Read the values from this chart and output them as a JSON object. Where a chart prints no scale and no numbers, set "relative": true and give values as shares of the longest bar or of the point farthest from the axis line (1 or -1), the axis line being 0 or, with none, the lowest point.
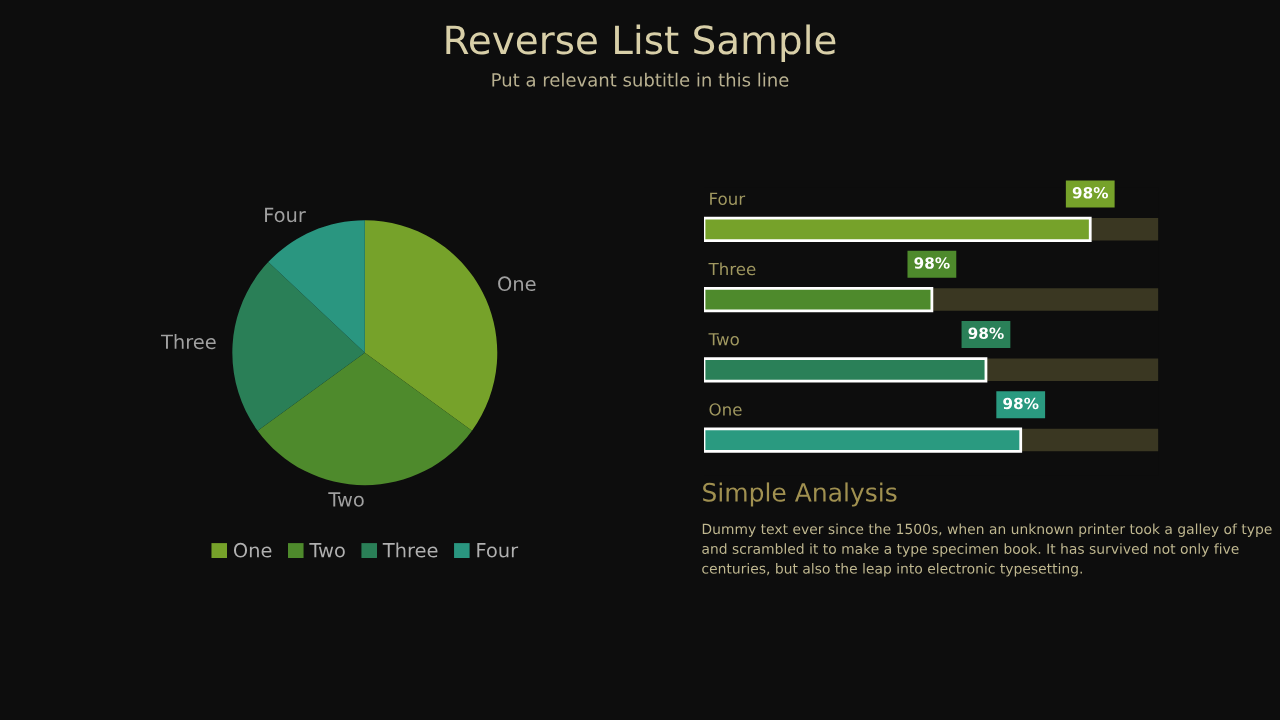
{
  "chart_data": [
    {
      "type": "pie",
      "title": "Reverse List Sample",
      "subtitle": "Put a relevant subtitle in this line",
      "categories": [
        "One",
        "Two",
        "Three",
        "Four"
      ],
      "values": [
        35,
        30,
        22,
        13
      ],
      "colors": [
        "#76a22a",
        "#4e8a2c",
        "#2a7f57",
        "#2a9680"
      ],
      "legend": "bottom"
    },
    {
      "type": "bar",
      "orientation": "horizontal",
      "relative": true,
      "categories": [
        "Four",
        "Three",
        "Two",
        "One"
      ],
      "values": [
        1,
        0.59,
        0.73,
        0.82
      ],
      "colors": [
        "#76a22a",
        "#4e8a2c",
        "#2a8058",
        "#2a9a80"
      ],
      "annotations": [
        "98%",
        "98%",
        "98%",
        "98%"
      ]
    },
    {
      "type": "other",
      "title": "Simple Analysis",
      "annotations": [
        "Dummy text ever since the 1500s, when an unknown printer took a galley of type and scrambled it to make a type specimen book. It has survived not only five centuries, but also the leap into electronic typesetting."
      ]
    }
  ]
}
